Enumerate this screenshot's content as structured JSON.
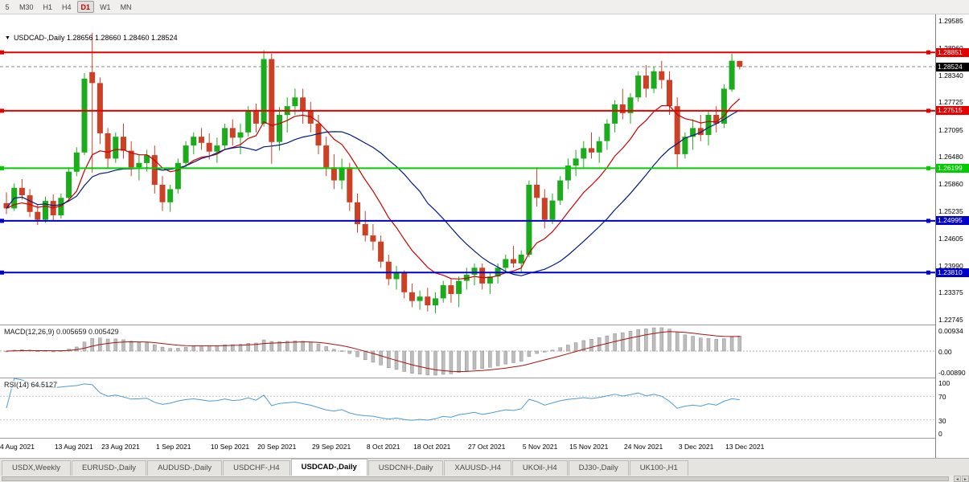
{
  "toolbar": {
    "timeframes": [
      {
        "label": "5",
        "active": false
      },
      {
        "label": "M30",
        "active": false
      },
      {
        "label": "H1",
        "active": false
      },
      {
        "label": "H4",
        "active": false
      },
      {
        "label": "D1",
        "active": true
      },
      {
        "label": "W1",
        "active": false
      },
      {
        "label": "MN",
        "active": false
      }
    ]
  },
  "chart": {
    "title": "USDCAD-,Daily 1.28656 1.28660 1.28460 1.28524",
    "marker_glyph": "▼",
    "price_min": 1.2262,
    "price_max": 1.2972,
    "price_axis_ticks": [
      "1.29585",
      "1.28960",
      "1.28340",
      "1.27725",
      "1.27095",
      "1.26480",
      "1.25860",
      "1.25235",
      "1.24605",
      "1.23990",
      "1.23375",
      "1.22745"
    ],
    "hlines": [
      {
        "value": 1.28851,
        "label": "1.28851",
        "color": "#e60000"
      },
      {
        "value": 1.27515,
        "label": "1.27515",
        "color": "#e60000"
      },
      {
        "value": 1.26199,
        "label": "1.26199",
        "color": "#00cc00"
      },
      {
        "value": 1.24995,
        "label": "1.24995",
        "color": "#0000cc"
      },
      {
        "value": 1.2381,
        "label": "1.23810",
        "color": "#0000cc"
      }
    ],
    "current_price": {
      "value": 1.28524,
      "label": "1.28524",
      "bg": "#000000"
    }
  },
  "chart_data": {
    "type": "candlestick",
    "symbol": "USDCAD-",
    "timeframe": "Daily",
    "up_color": "#1cab1c",
    "down_color": "#cc4125",
    "ma_fast": {
      "period": 10,
      "color": "#cc0000"
    },
    "ma_slow": {
      "period": 21,
      "color": "#001a80"
    },
    "date_labels": [
      {
        "text": "4 Aug 2021",
        "index": 0
      },
      {
        "text": "13 Aug 2021",
        "index": 7
      },
      {
        "text": "23 Aug 2021",
        "index": 13
      },
      {
        "text": "1 Sep 2021",
        "index": 20
      },
      {
        "text": "10 Sep 2021",
        "index": 27
      },
      {
        "text": "20 Sep 2021",
        "index": 33
      },
      {
        "text": "29 Sep 2021",
        "index": 40
      },
      {
        "text": "8 Oct 2021",
        "index": 47
      },
      {
        "text": "18 Oct 2021",
        "index": 53
      },
      {
        "text": "27 Oct 2021",
        "index": 60
      },
      {
        "text": "5 Nov 2021",
        "index": 67
      },
      {
        "text": "15 Nov 2021",
        "index": 73
      },
      {
        "text": "24 Nov 2021",
        "index": 80
      },
      {
        "text": "3 Dec 2021",
        "index": 87
      },
      {
        "text": "13 Dec 2021",
        "index": 93
      }
    ],
    "ohlc": [
      [
        1.254,
        1.2565,
        1.2515,
        1.2528
      ],
      [
        1.2528,
        1.2585,
        1.2522,
        1.2575
      ],
      [
        1.2575,
        1.2595,
        1.2548,
        1.2558
      ],
      [
        1.2558,
        1.2572,
        1.2508,
        1.252
      ],
      [
        1.252,
        1.2538,
        1.249,
        1.2502
      ],
      [
        1.2502,
        1.2555,
        1.2495,
        1.2545
      ],
      [
        1.2545,
        1.256,
        1.25,
        1.2512
      ],
      [
        1.2512,
        1.2562,
        1.2505,
        1.2552
      ],
      [
        1.2552,
        1.2622,
        1.2545,
        1.2612
      ],
      [
        1.2612,
        1.2668,
        1.2602,
        1.2656
      ],
      [
        1.2656,
        1.2838,
        1.265,
        1.2825
      ],
      [
        1.284,
        1.293,
        1.261,
        1.2815
      ],
      [
        1.2815,
        1.2828,
        1.2675,
        1.27
      ],
      [
        1.27,
        1.2712,
        1.2618,
        1.2642
      ],
      [
        1.2642,
        1.2702,
        1.2632,
        1.2692
      ],
      [
        1.2692,
        1.2722,
        1.2642,
        1.266
      ],
      [
        1.266,
        1.2682,
        1.2602,
        1.2622
      ],
      [
        1.2622,
        1.2652,
        1.2592,
        1.2632
      ],
      [
        1.2632,
        1.2662,
        1.2612,
        1.265
      ],
      [
        1.265,
        1.2672,
        1.2562,
        1.2582
      ],
      [
        1.2582,
        1.2602,
        1.2522,
        1.2542
      ],
      [
        1.2542,
        1.2582,
        1.252,
        1.2572
      ],
      [
        1.2572,
        1.2642,
        1.2562,
        1.2632
      ],
      [
        1.2632,
        1.2682,
        1.2622,
        1.2672
      ],
      [
        1.2672,
        1.2702,
        1.2652,
        1.2692
      ],
      [
        1.2692,
        1.2712,
        1.2662,
        1.2678
      ],
      [
        1.2678,
        1.27,
        1.264,
        1.2658
      ],
      [
        1.2658,
        1.269,
        1.2632,
        1.2672
      ],
      [
        1.2672,
        1.2722,
        1.2662,
        1.2712
      ],
      [
        1.2712,
        1.2732,
        1.2672,
        1.269
      ],
      [
        1.269,
        1.2722,
        1.2652,
        1.2702
      ],
      [
        1.2702,
        1.2762,
        1.2692,
        1.2752
      ],
      [
        1.2752,
        1.2768,
        1.2702,
        1.2722
      ],
      [
        1.2722,
        1.289,
        1.2715,
        1.287
      ],
      [
        1.287,
        1.2882,
        1.263,
        1.268
      ],
      [
        1.268,
        1.276,
        1.266,
        1.2742
      ],
      [
        1.2742,
        1.2782,
        1.2702,
        1.2762
      ],
      [
        1.2762,
        1.2802,
        1.2742,
        1.2782
      ],
      [
        1.2782,
        1.2802,
        1.2722,
        1.2752
      ],
      [
        1.2752,
        1.2772,
        1.2702,
        1.2722
      ],
      [
        1.2722,
        1.2742,
        1.2652,
        1.2672
      ],
      [
        1.2672,
        1.2692,
        1.2602,
        1.2622
      ],
      [
        1.2622,
        1.2652,
        1.2572,
        1.2592
      ],
      [
        1.2592,
        1.2642,
        1.2572,
        1.2622
      ],
      [
        1.2622,
        1.2632,
        1.2522,
        1.2542
      ],
      [
        1.2542,
        1.2562,
        1.2472,
        1.2492
      ],
      [
        1.2492,
        1.2522,
        1.2452,
        1.2466
      ],
      [
        1.2466,
        1.2492,
        1.2432,
        1.2452
      ],
      [
        1.2452,
        1.2466,
        1.2392,
        1.2406
      ],
      [
        1.2406,
        1.2422,
        1.2352,
        1.2366
      ],
      [
        1.2366,
        1.2396,
        1.2342,
        1.2382
      ],
      [
        1.2382,
        1.2386,
        1.2322,
        1.2336
      ],
      [
        1.2336,
        1.2356,
        1.2302,
        1.2316
      ],
      [
        1.2316,
        1.234,
        1.2296,
        1.2326
      ],
      [
        1.2326,
        1.2346,
        1.2292,
        1.2306
      ],
      [
        1.2306,
        1.2336,
        1.2288,
        1.2322
      ],
      [
        1.2322,
        1.2362,
        1.2312,
        1.2352
      ],
      [
        1.2352,
        1.2366,
        1.2312,
        1.2332
      ],
      [
        1.2332,
        1.2372,
        1.2302,
        1.2362
      ],
      [
        1.2362,
        1.2392,
        1.2342,
        1.2376
      ],
      [
        1.2376,
        1.2402,
        1.2352,
        1.2392
      ],
      [
        1.2392,
        1.2402,
        1.2342,
        1.2356
      ],
      [
        1.2356,
        1.2382,
        1.2332,
        1.2372
      ],
      [
        1.2372,
        1.2402,
        1.2356,
        1.2392
      ],
      [
        1.2392,
        1.2422,
        1.2382,
        1.2412
      ],
      [
        1.2412,
        1.2442,
        1.2392,
        1.2402
      ],
      [
        1.2402,
        1.2432,
        1.2382,
        1.2422
      ],
      [
        1.2422,
        1.2592,
        1.2416,
        1.2582
      ],
      [
        1.2582,
        1.2622,
        1.2532,
        1.2552
      ],
      [
        1.2552,
        1.2572,
        1.2482,
        1.2502
      ],
      [
        1.2502,
        1.2562,
        1.2492,
        1.2546
      ],
      [
        1.2546,
        1.2602,
        1.2536,
        1.2592
      ],
      [
        1.2592,
        1.2642,
        1.2572,
        1.2626
      ],
      [
        1.2626,
        1.2662,
        1.2602,
        1.2642
      ],
      [
        1.2642,
        1.2682,
        1.2622,
        1.2666
      ],
      [
        1.2666,
        1.2702,
        1.2642,
        1.2656
      ],
      [
        1.2656,
        1.2692,
        1.2632,
        1.2682
      ],
      [
        1.2682,
        1.2732,
        1.2662,
        1.2722
      ],
      [
        1.2722,
        1.2776,
        1.2702,
        1.2766
      ],
      [
        1.2766,
        1.2802,
        1.2732,
        1.2746
      ],
      [
        1.2746,
        1.2792,
        1.2722,
        1.2782
      ],
      [
        1.2782,
        1.2842,
        1.2772,
        1.2832
      ],
      [
        1.2832,
        1.2856,
        1.2782,
        1.2802
      ],
      [
        1.2802,
        1.2852,
        1.2792,
        1.2842
      ],
      [
        1.2842,
        1.2866,
        1.2802,
        1.2822
      ],
      [
        1.2822,
        1.2842,
        1.2742,
        1.2762
      ],
      [
        1.2762,
        1.2782,
        1.2622,
        1.2652
      ],
      [
        1.2652,
        1.2702,
        1.2642,
        1.2692
      ],
      [
        1.2692,
        1.2732,
        1.2662,
        1.2712
      ],
      [
        1.2712,
        1.2742,
        1.2682,
        1.2696
      ],
      [
        1.2696,
        1.2752,
        1.2672,
        1.2742
      ],
      [
        1.2742,
        1.2762,
        1.2702,
        1.2722
      ],
      [
        1.2722,
        1.2812,
        1.2712,
        1.2802
      ],
      [
        1.28,
        1.2882,
        1.2795,
        1.2866
      ],
      [
        1.28656,
        1.2866,
        1.2846,
        1.28524
      ]
    ]
  },
  "macd": {
    "label": "MACD(12,26,9) 0.005659 0.005429",
    "fast": 12,
    "slow": 26,
    "signal": 9,
    "axis_labels": {
      "max": "0.00934",
      "zero": "0.00",
      "min": "-0.00890"
    },
    "histogram_color": "#bdbdbd",
    "signal_color": "#aa1111"
  },
  "rsi": {
    "label": "RSI(14) 64.5127",
    "period": 14,
    "axis_labels": [
      "100",
      "70",
      "30",
      "0"
    ],
    "levels": [
      70,
      30
    ],
    "line_color": "#4f9bd5"
  },
  "tabs": [
    {
      "label": "USDX,Weekly",
      "active": false
    },
    {
      "label": "EURUSD-,Daily",
      "active": false
    },
    {
      "label": "AUDUSD-,Daily",
      "active": false
    },
    {
      "label": "USDCHF-,H4",
      "active": false
    },
    {
      "label": "USDCAD-,Daily",
      "active": true
    },
    {
      "label": "USDCNH-,Daily",
      "active": false
    },
    {
      "label": "XAUUSD-,H4",
      "active": false
    },
    {
      "label": "UKOil-,H4",
      "active": false
    },
    {
      "label": "DJ30-,Daily",
      "active": false
    },
    {
      "label": "UK100-,H1",
      "active": false
    }
  ],
  "scrollbar": {
    "left_arrow": "◄",
    "right_arrow": "►"
  }
}
